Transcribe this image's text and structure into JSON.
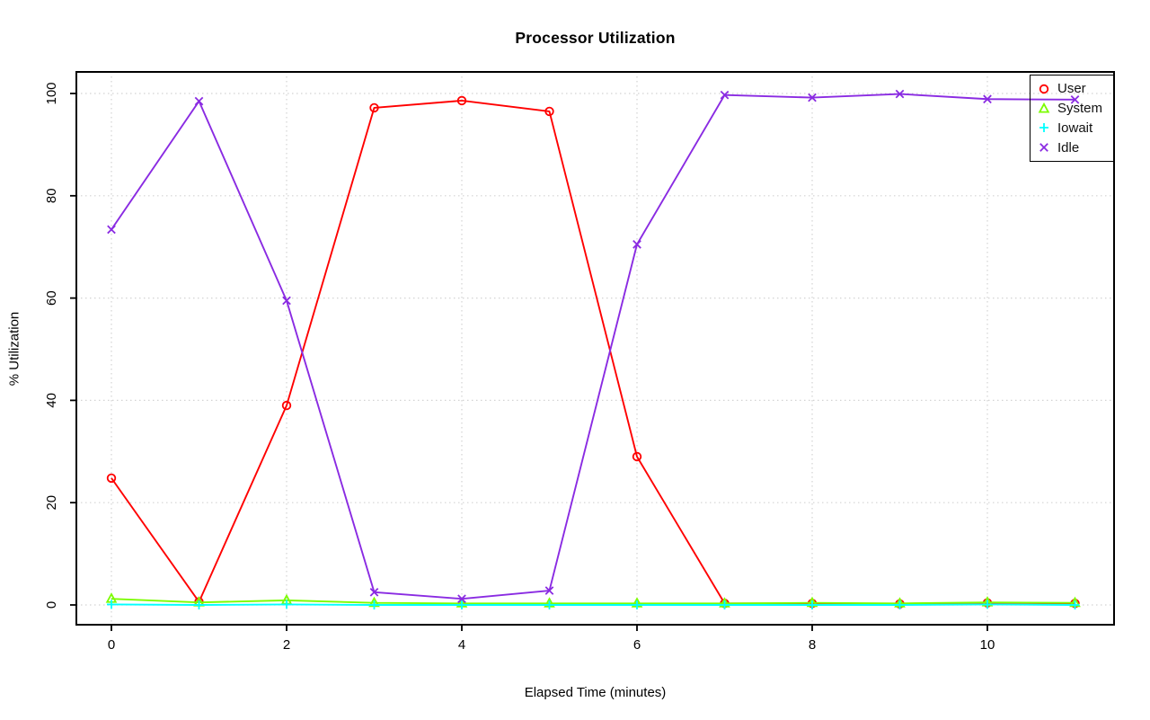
{
  "title": "Processor Utilization",
  "chart_data": {
    "type": "line",
    "title": "Processor Utilization",
    "xlabel": "Elapsed Time (minutes)",
    "ylabel": "% Utilization",
    "x": [
      0,
      1,
      2,
      3,
      4,
      5,
      6,
      7,
      8,
      9,
      10,
      11
    ],
    "xlim": [
      0,
      11
    ],
    "ylim": [
      0,
      100
    ],
    "xticks": [
      0,
      2,
      4,
      6,
      8,
      10
    ],
    "xtick_labels": [
      "0",
      "2",
      "4",
      "6",
      "8",
      "10"
    ],
    "yticks": [
      0,
      20,
      40,
      60,
      80,
      100
    ],
    "ytick_labels": [
      "0",
      "20",
      "40",
      "60",
      "80",
      "100"
    ],
    "grid": "dotted lightgray at all axis ticks",
    "grid_color": "#d3d3d3",
    "axis_color": "#000000",
    "legend_position": "top-right",
    "series": [
      {
        "name": "User",
        "color": "#ff0000",
        "marker": "circle",
        "values": [
          24.8,
          0.6,
          39.0,
          97.2,
          98.6,
          96.5,
          29.0,
          0.3,
          0.3,
          0.2,
          0.4,
          0.3
        ]
      },
      {
        "name": "System",
        "color": "#7cfc00",
        "marker": "triangle",
        "values": [
          1.2,
          0.5,
          0.9,
          0.4,
          0.3,
          0.3,
          0.3,
          0.3,
          0.4,
          0.3,
          0.5,
          0.4
        ]
      },
      {
        "name": "Iowait",
        "color": "#00ffff",
        "marker": "plus",
        "values": [
          0.1,
          0.0,
          0.1,
          0.0,
          0.0,
          0.0,
          0.0,
          0.0,
          0.0,
          0.0,
          0.1,
          0.0
        ]
      },
      {
        "name": "Idle",
        "color": "#8a2be2",
        "marker": "x",
        "values": [
          73.4,
          98.5,
          59.5,
          2.5,
          1.2,
          2.8,
          70.5,
          99.7,
          99.2,
          99.9,
          98.9,
          98.8
        ]
      }
    ]
  }
}
